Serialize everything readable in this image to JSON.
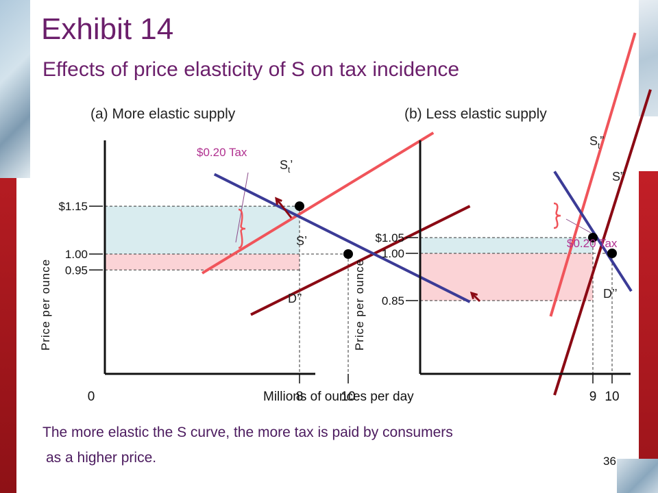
{
  "title": "Exhibit 14",
  "subtitle": "Effects of price elasticity of S on tax incidence",
  "footer_line1": "The more elastic the S curve, the more tax is paid by consumers",
  "footer_line2": "as a higher price.",
  "page_number": "36",
  "x_axis_label": "Millions of ounces per day",
  "colors": {
    "title": "#6b1f6b",
    "demand": "#3b3b96",
    "supply": "#8b0a14",
    "supply_tax": "#f0545a",
    "tax_label": "#b0308f",
    "consumer_area": "#d9ecef",
    "producer_area": "#fbd3d6"
  },
  "chart_data": [
    {
      "type": "line",
      "title": "(a) More elastic supply",
      "ylabel": "Price per ounce",
      "x_tick_labels": [
        "0",
        "8",
        "10"
      ],
      "x_ticks": [
        0,
        8,
        10
      ],
      "y_tick_labels": [
        "$1.15",
        "1.00",
        "0.95"
      ],
      "y_ticks": [
        1.15,
        1.0,
        0.95
      ],
      "series": [
        {
          "name": "S’",
          "points": [
            [
              6.0,
              0.81
            ],
            [
              15.0,
              1.15
            ]
          ]
        },
        {
          "name": "St’",
          "sub": "t",
          "prime": "’",
          "points": [
            [
              4.0,
              0.94
            ],
            [
              13.5,
              1.38
            ]
          ]
        },
        {
          "name": "D’’",
          "points": [
            [
              4.5,
              1.25
            ],
            [
              15.0,
              0.85
            ]
          ]
        }
      ],
      "equilibria": [
        [
          8,
          1.15
        ],
        [
          10,
          1.0
        ]
      ],
      "tax_label": "$0.20 Tax"
    },
    {
      "type": "line",
      "title": "(b) Less elastic supply",
      "ylabel": "Price per ounce",
      "x_tick_labels": [
        "9",
        "10"
      ],
      "x_ticks": [
        9,
        10
      ],
      "y_tick_labels": [
        "$1.05",
        "1.00",
        "0.85"
      ],
      "y_ticks": [
        1.05,
        1.0,
        0.85
      ],
      "series": [
        {
          "name": "S”",
          "points": [
            [
              7.0,
              0.55
            ],
            [
              12.0,
              1.52
            ]
          ]
        },
        {
          "name": "St”",
          "sub": "t",
          "prime": "”",
          "points": [
            [
              6.8,
              0.8
            ],
            [
              11.2,
              1.7
            ]
          ]
        },
        {
          "name": "D’’",
          "points": [
            [
              7.0,
              1.26
            ],
            [
              11.0,
              0.88
            ]
          ]
        }
      ],
      "equilibria": [
        [
          9,
          1.05
        ],
        [
          10,
          1.0
        ]
      ],
      "tax_label": "$0.20 Tax"
    }
  ]
}
